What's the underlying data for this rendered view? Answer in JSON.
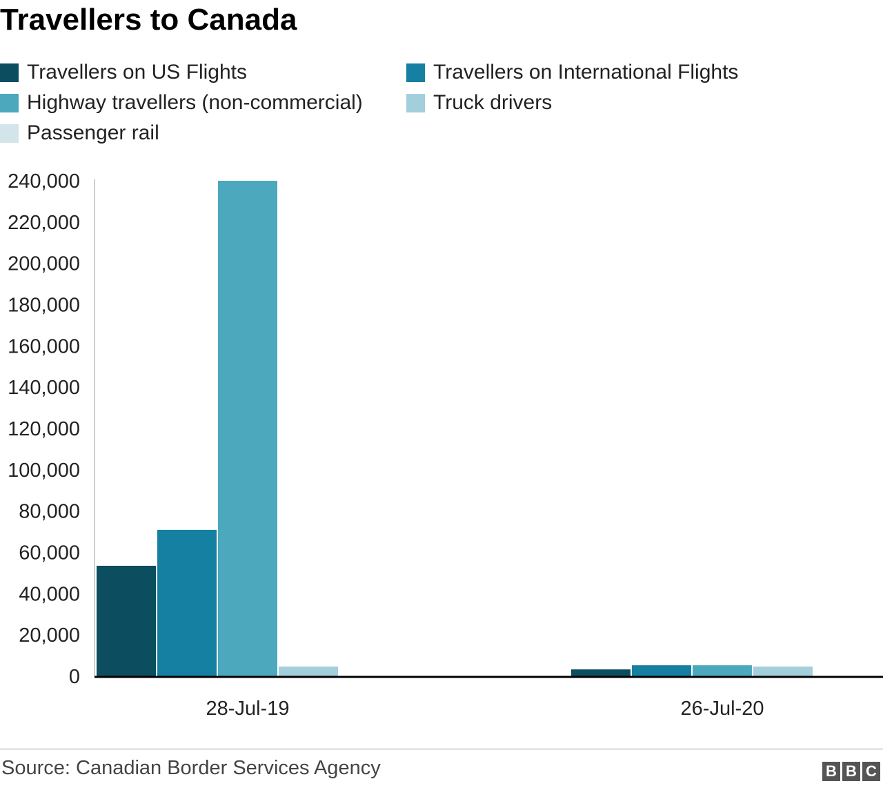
{
  "chart_data": {
    "type": "bar",
    "title": "Travellers to Canada",
    "categories": [
      "28-Jul-19",
      "26-Jul-20"
    ],
    "series": [
      {
        "name": "Travellers on US Flights",
        "color": "#0c4d5f",
        "values": [
          53500,
          3300
        ]
      },
      {
        "name": "Travellers on International Flights",
        "color": "#1580a2",
        "values": [
          70900,
          5300
        ]
      },
      {
        "name": "Highway travellers (non-commercial)",
        "color": "#4ca8bd",
        "values": [
          240000,
          5300
        ]
      },
      {
        "name": "Truck drivers",
        "color": "#a3cfdc",
        "values": [
          4700,
          4700
        ]
      },
      {
        "name": "Passenger rail",
        "color": "#d3e4ea",
        "values": [
          0,
          0
        ]
      }
    ],
    "ylim": [
      0,
      240000
    ],
    "yticks": [
      "0",
      "20,000",
      "40,000",
      "60,000",
      "80,000",
      "100,000",
      "120,000",
      "140,000",
      "160,000",
      "180,000",
      "200,000",
      "220,000",
      "240,000"
    ],
    "xlabel": "",
    "ylabel": "",
    "legend_position": "top-left",
    "grid": false
  },
  "footer": {
    "source": "Source: Canadian Border Services Agency",
    "logo": "BBC"
  }
}
